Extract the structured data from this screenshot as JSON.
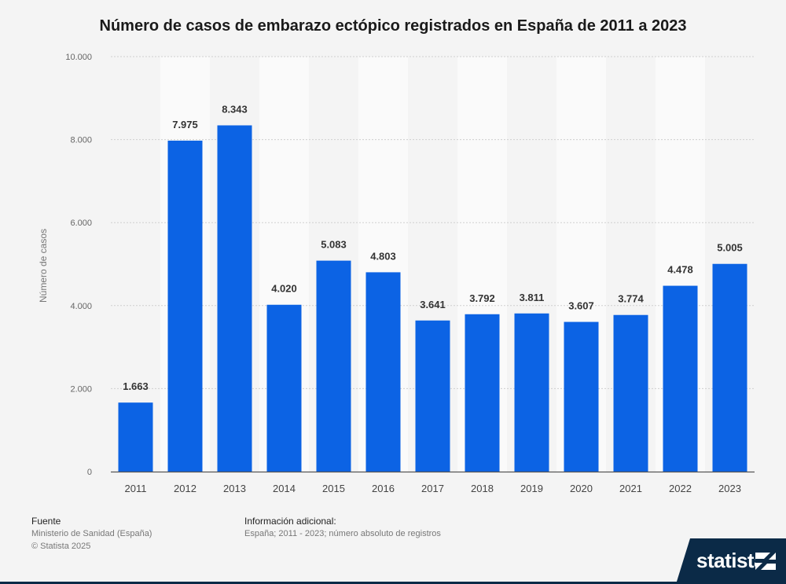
{
  "chart_data": {
    "type": "bar",
    "title": "Número de casos de embarazo ectópico registrados en España de 2011 a 2023",
    "ylabel": "Número de casos",
    "xlabel": "",
    "categories": [
      "2011",
      "2012",
      "2013",
      "2014",
      "2015",
      "2016",
      "2017",
      "2018",
      "2019",
      "2020",
      "2021",
      "2022",
      "2023"
    ],
    "values": [
      1663,
      7975,
      8343,
      4020,
      5083,
      4803,
      3641,
      3792,
      3811,
      3607,
      3774,
      4478,
      5005
    ],
    "value_labels": [
      "1.663",
      "7.975",
      "8.343",
      "4.020",
      "5.083",
      "4.803",
      "3.641",
      "3.792",
      "3.811",
      "3.607",
      "3.774",
      "4.478",
      "5.005"
    ],
    "ylim": [
      0,
      10000
    ],
    "yticks": [
      0,
      2000,
      4000,
      6000,
      8000,
      10000
    ],
    "ytick_labels": [
      "0",
      "2.000",
      "4.000",
      "6.000",
      "8.000",
      "10.000"
    ],
    "grid": true,
    "bar_color": "#0c63e4"
  },
  "footer": {
    "source_heading": "Fuente",
    "source_lines": [
      "Ministerio de Sanidad (España)",
      "© Statista 2025"
    ],
    "info_heading": "Información adicional:",
    "info_lines": [
      "España; 2011 - 2023; número absoluto de registros"
    ]
  },
  "logo": {
    "text": "statista",
    "mark": "statista-logo-icon"
  }
}
